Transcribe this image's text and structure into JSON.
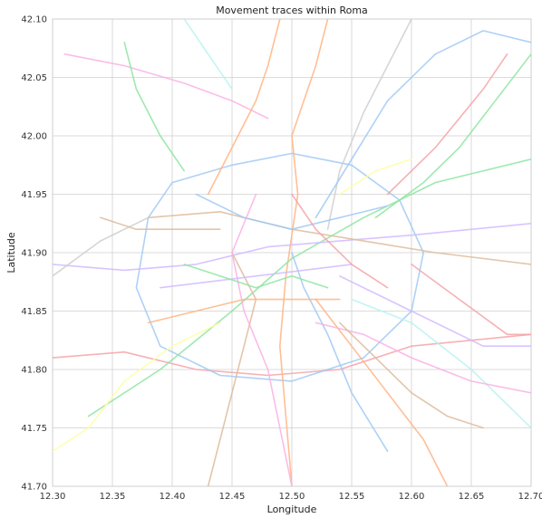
{
  "chart_data": {
    "type": "line",
    "title": "Movement traces within Roma",
    "xlabel": "Longitude",
    "ylabel": "Latitude",
    "xlim": [
      12.3,
      12.7
    ],
    "ylim": [
      41.7,
      42.1
    ],
    "xticks": [
      "12.30",
      "12.35",
      "12.40",
      "12.45",
      "12.50",
      "12.55",
      "12.60",
      "12.65",
      "12.70"
    ],
    "yticks": [
      "41.70",
      "41.75",
      "41.80",
      "41.85",
      "41.90",
      "41.95",
      "42.00",
      "42.05",
      "42.10"
    ],
    "grid": true,
    "legend": "none",
    "palette": [
      "#f4a3a8",
      "#a1c9f4",
      "#8de5a1",
      "#ffb482",
      "#d0bbff",
      "#debb9b",
      "#fab0e4",
      "#cfcfcf",
      "#fffea3",
      "#b9f2f0"
    ],
    "series": [
      {
        "color": "#f4a3a8",
        "points": [
          [
            12.3,
            41.81
          ],
          [
            12.36,
            41.815
          ],
          [
            12.42,
            41.8
          ],
          [
            12.48,
            41.795
          ],
          [
            12.54,
            41.8
          ],
          [
            12.6,
            41.82
          ],
          [
            12.7,
            41.83
          ]
        ]
      },
      {
        "color": "#a1c9f4",
        "points": [
          [
            12.4,
            41.96
          ],
          [
            12.45,
            41.975
          ],
          [
            12.5,
            41.985
          ],
          [
            12.55,
            41.975
          ],
          [
            12.59,
            41.945
          ],
          [
            12.61,
            41.9
          ],
          [
            12.6,
            41.85
          ],
          [
            12.56,
            41.81
          ],
          [
            12.5,
            41.79
          ],
          [
            12.44,
            41.795
          ],
          [
            12.39,
            41.82
          ],
          [
            12.37,
            41.87
          ],
          [
            12.38,
            41.93
          ],
          [
            12.4,
            41.96
          ]
        ]
      },
      {
        "color": "#ffb482",
        "points": [
          [
            12.5,
            41.7
          ],
          [
            12.495,
            41.76
          ],
          [
            12.49,
            41.82
          ],
          [
            12.495,
            41.88
          ],
          [
            12.505,
            41.95
          ],
          [
            12.5,
            42.0
          ],
          [
            12.52,
            42.06
          ],
          [
            12.53,
            42.1
          ]
        ]
      },
      {
        "color": "#8de5a1",
        "points": [
          [
            12.33,
            41.76
          ],
          [
            12.39,
            41.8
          ],
          [
            12.45,
            41.85
          ],
          [
            12.5,
            41.895
          ],
          [
            12.56,
            41.93
          ],
          [
            12.62,
            41.96
          ],
          [
            12.7,
            41.98
          ]
        ]
      },
      {
        "color": "#d0bbff",
        "points": [
          [
            12.3,
            41.89
          ],
          [
            12.36,
            41.885
          ],
          [
            12.42,
            41.89
          ],
          [
            12.48,
            41.905
          ],
          [
            12.54,
            41.91
          ],
          [
            12.6,
            41.915
          ],
          [
            12.7,
            41.925
          ]
        ]
      },
      {
        "color": "#debb9b",
        "points": [
          [
            12.38,
            41.93
          ],
          [
            12.44,
            41.935
          ],
          [
            12.5,
            41.92
          ],
          [
            12.56,
            41.91
          ],
          [
            12.62,
            41.9
          ],
          [
            12.7,
            41.89
          ]
        ]
      },
      {
        "color": "#fab0e4",
        "points": [
          [
            12.31,
            42.07
          ],
          [
            12.36,
            42.06
          ],
          [
            12.41,
            42.045
          ],
          [
            12.45,
            42.03
          ],
          [
            12.48,
            42.015
          ]
        ]
      },
      {
        "color": "#cfcfcf",
        "points": [
          [
            12.53,
            41.92
          ],
          [
            12.54,
            41.97
          ],
          [
            12.56,
            42.02
          ],
          [
            12.58,
            42.06
          ],
          [
            12.6,
            42.1
          ]
        ]
      },
      {
        "color": "#a1c9f4",
        "points": [
          [
            12.52,
            41.93
          ],
          [
            12.55,
            41.98
          ],
          [
            12.58,
            42.03
          ],
          [
            12.62,
            42.07
          ],
          [
            12.66,
            42.09
          ],
          [
            12.7,
            42.08
          ]
        ]
      },
      {
        "color": "#fffea3",
        "points": [
          [
            12.3,
            41.73
          ],
          [
            12.33,
            41.75
          ],
          [
            12.36,
            41.79
          ],
          [
            12.4,
            41.82
          ],
          [
            12.44,
            41.84
          ]
        ]
      },
      {
        "color": "#b9f2f0",
        "points": [
          [
            12.55,
            41.86
          ],
          [
            12.6,
            41.84
          ],
          [
            12.65,
            41.8
          ],
          [
            12.7,
            41.75
          ]
        ]
      },
      {
        "color": "#f4a3a8",
        "points": [
          [
            12.6,
            41.89
          ],
          [
            12.64,
            41.86
          ],
          [
            12.68,
            41.83
          ],
          [
            12.7,
            41.83
          ]
        ]
      },
      {
        "color": "#ffb482",
        "points": [
          [
            12.52,
            41.86
          ],
          [
            12.55,
            41.82
          ],
          [
            12.58,
            41.78
          ],
          [
            12.61,
            41.74
          ],
          [
            12.63,
            41.7
          ]
        ]
      },
      {
        "color": "#8de5a1",
        "points": [
          [
            12.36,
            42.08
          ],
          [
            12.37,
            42.04
          ],
          [
            12.39,
            42.0
          ],
          [
            12.41,
            41.97
          ]
        ]
      },
      {
        "color": "#d0bbff",
        "points": [
          [
            12.54,
            41.88
          ],
          [
            12.58,
            41.86
          ],
          [
            12.62,
            41.84
          ],
          [
            12.66,
            41.82
          ],
          [
            12.7,
            41.82
          ]
        ]
      },
      {
        "color": "#debb9b",
        "points": [
          [
            12.45,
            41.9
          ],
          [
            12.47,
            41.86
          ],
          [
            12.46,
            41.82
          ],
          [
            12.45,
            41.78
          ],
          [
            12.44,
            41.74
          ],
          [
            12.43,
            41.7
          ]
        ]
      },
      {
        "color": "#fab0e4",
        "points": [
          [
            12.47,
            41.95
          ],
          [
            12.45,
            41.9
          ],
          [
            12.46,
            41.85
          ],
          [
            12.48,
            41.8
          ],
          [
            12.49,
            41.75
          ],
          [
            12.5,
            41.7
          ]
        ]
      },
      {
        "color": "#a1c9f4",
        "points": [
          [
            12.5,
            41.9
          ],
          [
            12.51,
            41.87
          ],
          [
            12.53,
            41.83
          ],
          [
            12.55,
            41.78
          ],
          [
            12.58,
            41.73
          ]
        ]
      },
      {
        "color": "#ffb482",
        "points": [
          [
            12.43,
            41.95
          ],
          [
            12.45,
            41.99
          ],
          [
            12.47,
            42.03
          ],
          [
            12.48,
            42.06
          ],
          [
            12.49,
            42.1
          ]
        ]
      },
      {
        "color": "#8de5a1",
        "points": [
          [
            12.57,
            41.93
          ],
          [
            12.61,
            41.96
          ],
          [
            12.64,
            41.99
          ],
          [
            12.67,
            42.03
          ],
          [
            12.7,
            42.07
          ]
        ]
      },
      {
        "color": "#f4a3a8",
        "points": [
          [
            12.58,
            41.95
          ],
          [
            12.62,
            41.99
          ],
          [
            12.66,
            42.04
          ],
          [
            12.68,
            42.07
          ]
        ]
      },
      {
        "color": "#cfcfcf",
        "points": [
          [
            12.3,
            41.88
          ],
          [
            12.34,
            41.91
          ],
          [
            12.38,
            41.93
          ]
        ]
      },
      {
        "color": "#debb9b",
        "points": [
          [
            12.34,
            41.93
          ],
          [
            12.37,
            41.92
          ],
          [
            12.4,
            41.92
          ],
          [
            12.44,
            41.92
          ]
        ]
      },
      {
        "color": "#b9f2f0",
        "points": [
          [
            12.41,
            42.1
          ],
          [
            12.43,
            42.07
          ],
          [
            12.45,
            42.04
          ]
        ]
      },
      {
        "color": "#fffea3",
        "points": [
          [
            12.54,
            41.95
          ],
          [
            12.57,
            41.97
          ],
          [
            12.6,
            41.98
          ]
        ]
      },
      {
        "color": "#d0bbff",
        "points": [
          [
            12.39,
            41.87
          ],
          [
            12.43,
            41.875
          ],
          [
            12.47,
            41.88
          ],
          [
            12.51,
            41.885
          ],
          [
            12.55,
            41.89
          ]
        ]
      },
      {
        "color": "#fab0e4",
        "points": [
          [
            12.52,
            41.84
          ],
          [
            12.56,
            41.83
          ],
          [
            12.6,
            41.81
          ],
          [
            12.65,
            41.79
          ],
          [
            12.7,
            41.78
          ]
        ]
      },
      {
        "color": "#a1c9f4",
        "points": [
          [
            12.42,
            41.95
          ],
          [
            12.46,
            41.93
          ],
          [
            12.5,
            41.92
          ],
          [
            12.54,
            41.93
          ],
          [
            12.58,
            41.94
          ]
        ]
      },
      {
        "color": "#f4a3a8",
        "points": [
          [
            12.5,
            41.95
          ],
          [
            12.52,
            41.92
          ],
          [
            12.55,
            41.89
          ],
          [
            12.58,
            41.87
          ]
        ]
      },
      {
        "color": "#8de5a1",
        "points": [
          [
            12.41,
            41.89
          ],
          [
            12.44,
            41.88
          ],
          [
            12.47,
            41.87
          ],
          [
            12.5,
            41.88
          ],
          [
            12.53,
            41.87
          ]
        ]
      },
      {
        "color": "#ffb482",
        "points": [
          [
            12.38,
            41.84
          ],
          [
            12.42,
            41.85
          ],
          [
            12.46,
            41.86
          ],
          [
            12.5,
            41.86
          ],
          [
            12.54,
            41.86
          ]
        ]
      },
      {
        "color": "#debb9b",
        "points": [
          [
            12.54,
            41.84
          ],
          [
            12.57,
            41.81
          ],
          [
            12.6,
            41.78
          ],
          [
            12.63,
            41.76
          ],
          [
            12.66,
            41.75
          ]
        ]
      }
    ]
  }
}
